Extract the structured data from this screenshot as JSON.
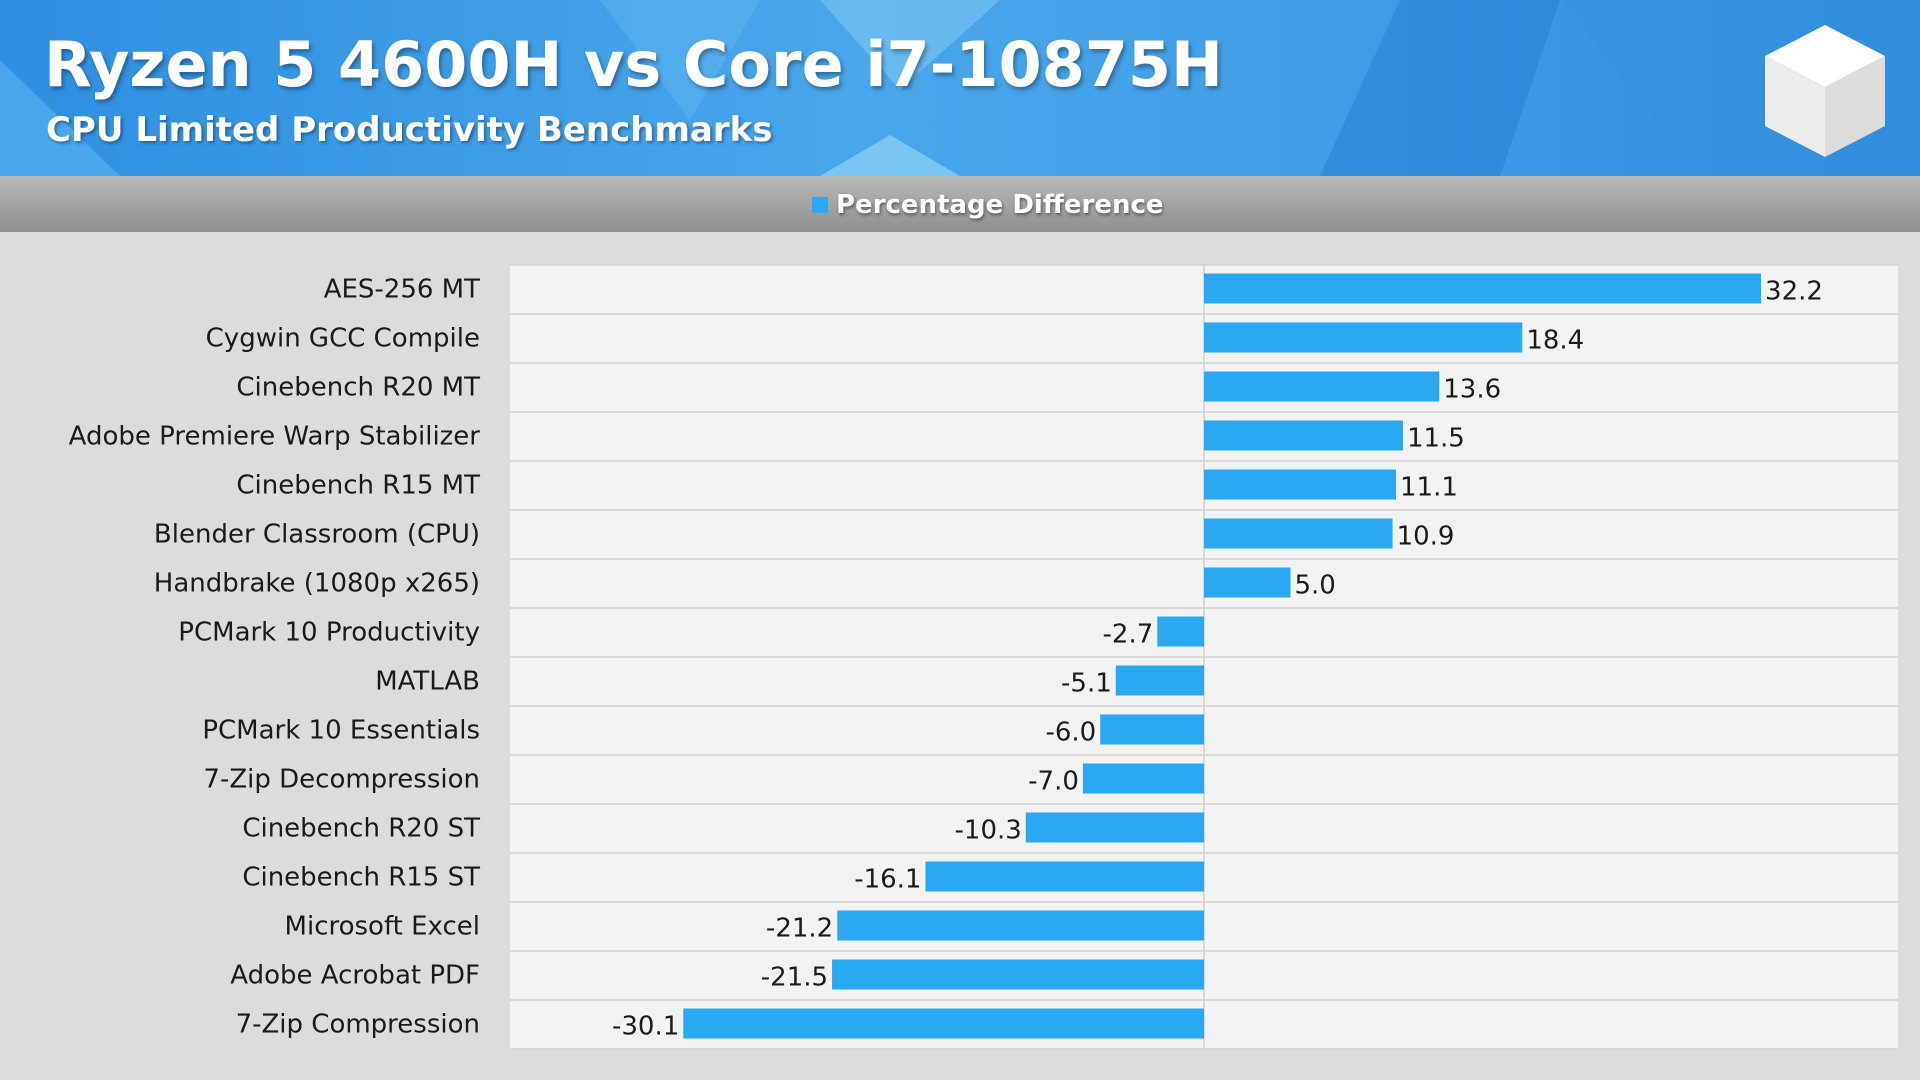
{
  "header": {
    "title": "Ryzen 5 4600H vs Core i7-10875H",
    "subtitle": "CPU Limited Productivity Benchmarks",
    "logo_icon": "cube-logo-icon"
  },
  "colors": {
    "bar": "#2aa8f2",
    "header_blue": "#3d9be6",
    "plot_bg": "#f2f2f2"
  },
  "chart_data": {
    "type": "bar",
    "orientation": "horizontal",
    "categories": [
      "AES-256 MT",
      "Cygwin GCC Compile",
      "Cinebench R20 MT",
      "Adobe Premiere Warp Stabilizer",
      "Cinebench R15 MT",
      "Blender Classroom (CPU)",
      "Handbrake (1080p x265)",
      "PCMark 10 Productivity",
      "MATLAB",
      "PCMark 10 Essentials",
      "7-Zip Decompression",
      "Cinebench R20 ST",
      "Cinebench R15 ST",
      "Microsoft Excel",
      "Adobe Acrobat PDF",
      "7-Zip Compression"
    ],
    "series": [
      {
        "name": "Percentage Difference",
        "values": [
          32.2,
          18.4,
          13.6,
          11.5,
          11.1,
          10.9,
          5.0,
          -2.7,
          -5.1,
          -6.0,
          -7.0,
          -10.3,
          -16.1,
          -21.2,
          -21.5,
          -30.1
        ],
        "labels": [
          "32.2",
          "18.4",
          "13.6",
          "11.5",
          "11.1",
          "10.9",
          "5.0",
          "-2.7",
          "-5.1",
          "-6.0",
          "-7.0",
          "-10.3",
          "-16.1",
          "-21.2",
          "-21.5",
          "-30.1"
        ]
      }
    ],
    "xlim": [
      -40,
      40
    ],
    "legend": "top-center",
    "grid": "horizontal row separators"
  }
}
